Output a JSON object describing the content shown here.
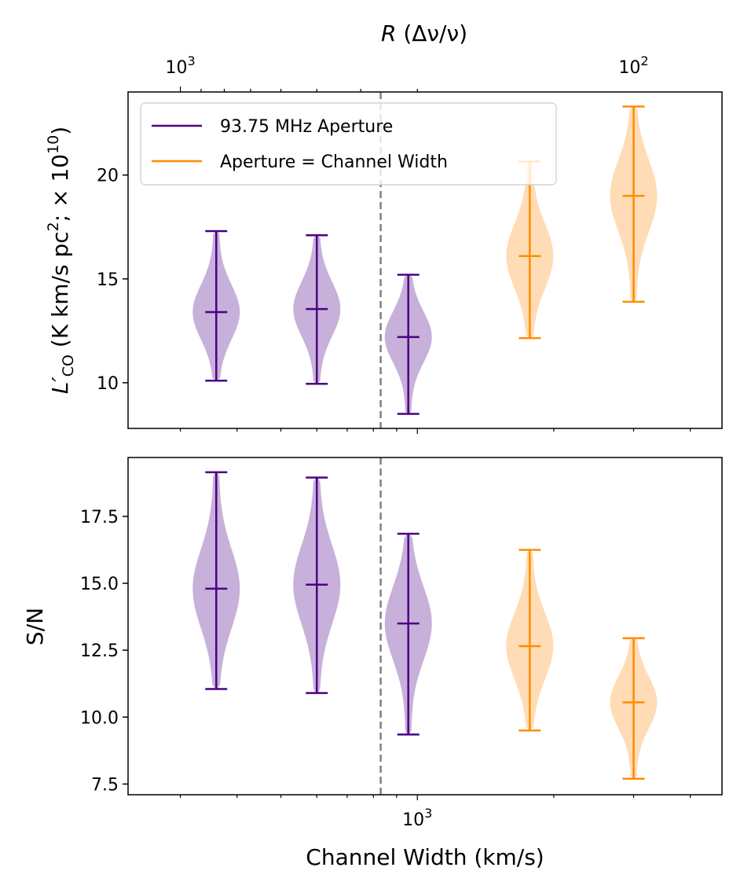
{
  "chart_data": [
    {
      "type": "violin",
      "panel": "top",
      "ylabel_main": "L′",
      "ylabel_sub": "CO",
      "ylabel_rest": " (K km/s pc",
      "ylabel_sup": "2",
      "ylabel_rest2": ";  × 10",
      "ylabel_sup2": "10",
      "ylabel_close": ")",
      "ylim": [
        7.8,
        24.0
      ],
      "yticks": [
        10,
        15,
        20
      ],
      "ytick_labels": [
        "10",
        "15",
        "20"
      ],
      "xscale": "log",
      "xlim": [
        230,
        4700
      ],
      "top_axis_label_italic": "R",
      "top_axis_label_rest": " (Δν/ν)",
      "top_ticks": [
        {
          "base": "10",
          "exp": "3",
          "x": 300
        },
        {
          "base": "10",
          "exp": "2",
          "x": 3000
        }
      ],
      "vline_x": 830,
      "legend": [
        {
          "label": "93.75 MHz Aperture",
          "color": "#4b0082"
        },
        {
          "label": "Aperture = Channel Width",
          "color": "#ff8c00"
        }
      ],
      "series": [
        {
          "x": 360,
          "min": 10.1,
          "max": 17.3,
          "median": 13.4,
          "color": "#4b0082",
          "fill": "#c7b0d9"
        },
        {
          "x": 600,
          "min": 9.95,
          "max": 17.1,
          "median": 13.55,
          "color": "#4b0082",
          "fill": "#c7b0d9"
        },
        {
          "x": 955,
          "min": 8.5,
          "max": 15.2,
          "median": 12.2,
          "color": "#4b0082",
          "fill": "#c7b0d9"
        },
        {
          "x": 1770,
          "min": 12.15,
          "max": 20.65,
          "median": 16.1,
          "color": "#ff8c00",
          "fill": "#ffdcb5"
        },
        {
          "x": 3000,
          "min": 13.9,
          "max": 23.3,
          "median": 19.0,
          "color": "#ff8c00",
          "fill": "#ffdcb5"
        }
      ]
    },
    {
      "type": "violin",
      "panel": "bottom",
      "ylabel": "S/N",
      "xlabel": "Channel Width (km/s)",
      "ylim": [
        7.1,
        19.7
      ],
      "yticks": [
        7.5,
        10.0,
        12.5,
        15.0,
        17.5
      ],
      "ytick_labels": [
        "7.5",
        "10.0",
        "12.5",
        "15.0",
        "17.5"
      ],
      "xscale": "log",
      "xlim": [
        230,
        4700
      ],
      "bottom_ticks": [
        {
          "base": "10",
          "exp": "3",
          "x": 1000
        }
      ],
      "vline_x": 830,
      "series": [
        {
          "x": 360,
          "min": 11.05,
          "max": 19.15,
          "median": 14.8,
          "color": "#4b0082",
          "fill": "#c7b0d9"
        },
        {
          "x": 600,
          "min": 10.9,
          "max": 18.95,
          "median": 14.95,
          "color": "#4b0082",
          "fill": "#c7b0d9"
        },
        {
          "x": 955,
          "min": 9.35,
          "max": 16.85,
          "median": 13.5,
          "color": "#4b0082",
          "fill": "#c7b0d9"
        },
        {
          "x": 1770,
          "min": 9.5,
          "max": 16.25,
          "median": 12.65,
          "color": "#ff8c00",
          "fill": "#ffdcb5"
        },
        {
          "x": 3000,
          "min": 7.7,
          "max": 12.95,
          "median": 10.55,
          "color": "#ff8c00",
          "fill": "#ffdcb5"
        }
      ]
    }
  ]
}
